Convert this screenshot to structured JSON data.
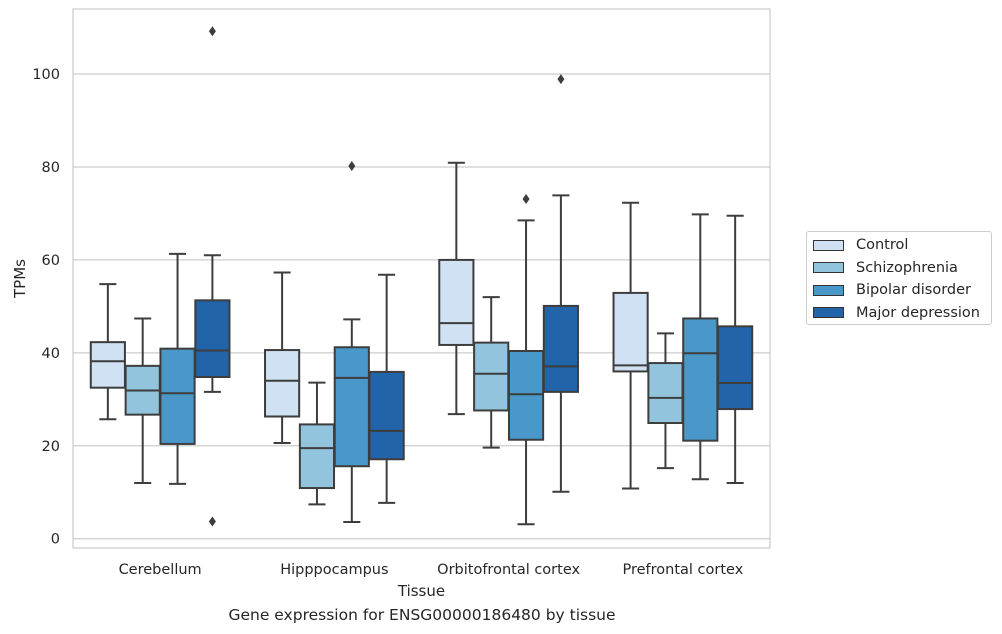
{
  "chart_data": {
    "type": "box",
    "title": "Gene expression for ENSG00000186480 by tissue",
    "xlabel": "Tissue",
    "ylabel": "TPMs",
    "ylim": [
      -2,
      114
    ],
    "yticks": [
      0,
      20,
      40,
      60,
      80,
      100
    ],
    "grid": "horizontal",
    "legend_position": "right",
    "categories": [
      "Cerebellum",
      "Hipppocampus",
      "Orbitofrontal cortex",
      "Prefrontal cortex"
    ],
    "series": [
      {
        "name": "Control",
        "color": "#cfe1f2",
        "boxes": [
          {
            "whisker_low": 25.7,
            "q1": 32.5,
            "median": 38.2,
            "q3": 42.3,
            "whisker_high": 54.8,
            "outliers": []
          },
          {
            "whisker_low": 20.6,
            "q1": 26.3,
            "median": 34.0,
            "q3": 40.6,
            "whisker_high": 57.3,
            "outliers": []
          },
          {
            "whisker_low": 26.8,
            "q1": 41.7,
            "median": 46.4,
            "q3": 60.0,
            "whisker_high": 80.9,
            "outliers": []
          },
          {
            "whisker_low": 10.8,
            "q1": 36.0,
            "median": 37.3,
            "q3": 52.9,
            "whisker_high": 72.3,
            "outliers": []
          }
        ]
      },
      {
        "name": "Schizophrenia",
        "color": "#93c4de",
        "boxes": [
          {
            "whisker_low": 12.0,
            "q1": 26.7,
            "median": 31.9,
            "q3": 37.2,
            "whisker_high": 47.4,
            "outliers": []
          },
          {
            "whisker_low": 7.4,
            "q1": 10.9,
            "median": 19.5,
            "q3": 24.6,
            "whisker_high": 33.6,
            "outliers": []
          },
          {
            "whisker_low": 19.6,
            "q1": 27.6,
            "median": 35.5,
            "q3": 42.2,
            "whisker_high": 52.0,
            "outliers": []
          },
          {
            "whisker_low": 15.2,
            "q1": 24.9,
            "median": 30.3,
            "q3": 37.8,
            "whisker_high": 44.2,
            "outliers": []
          }
        ]
      },
      {
        "name": "Bipolar disorder",
        "color": "#4a98c9",
        "boxes": [
          {
            "whisker_low": 11.8,
            "q1": 20.4,
            "median": 31.3,
            "q3": 40.9,
            "whisker_high": 61.3,
            "outliers": []
          },
          {
            "whisker_low": 3.6,
            "q1": 15.6,
            "median": 34.6,
            "q3": 41.2,
            "whisker_high": 47.2,
            "outliers": [
              80.2
            ]
          },
          {
            "whisker_low": 3.1,
            "q1": 21.3,
            "median": 31.1,
            "q3": 40.4,
            "whisker_high": 68.5,
            "outliers": [
              73.1
            ]
          },
          {
            "whisker_low": 12.8,
            "q1": 21.1,
            "median": 39.9,
            "q3": 47.4,
            "whisker_high": 69.8,
            "outliers": []
          }
        ]
      },
      {
        "name": "Major depression",
        "color": "#2164aa",
        "boxes": [
          {
            "whisker_low": 31.6,
            "q1": 34.8,
            "median": 40.5,
            "q3": 51.3,
            "whisker_high": 61.0,
            "outliers": [
              109.2,
              3.7
            ]
          },
          {
            "whisker_low": 7.7,
            "q1": 17.1,
            "median": 23.2,
            "q3": 35.9,
            "whisker_high": 56.8,
            "outliers": []
          },
          {
            "whisker_low": 10.1,
            "q1": 31.6,
            "median": 37.1,
            "q3": 50.1,
            "whisker_high": 73.9,
            "outliers": [
              98.9
            ]
          },
          {
            "whisker_low": 12.0,
            "q1": 27.9,
            "median": 33.5,
            "q3": 45.7,
            "whisker_high": 69.5,
            "outliers": []
          }
        ]
      }
    ]
  }
}
